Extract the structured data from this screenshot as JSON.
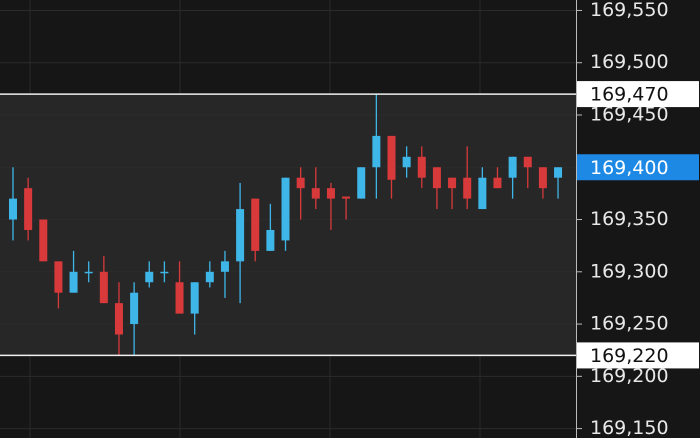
{
  "chart_data": {
    "type": "candlestick",
    "open": [
      169350,
      169380,
      169350,
      169310,
      169280,
      169300,
      169300,
      169270,
      169250,
      169290,
      169300,
      169290,
      169260,
      169290,
      169300,
      169310,
      169370,
      169320,
      169330,
      169390,
      169380,
      169380,
      169372,
      169370,
      169400,
      169430,
      169400,
      169410,
      169400,
      169390,
      169390,
      169360,
      169390,
      169390,
      169410,
      169400,
      169390
    ],
    "high": [
      169400,
      169390,
      169350,
      169310,
      169320,
      169310,
      169315,
      169290,
      169290,
      169310,
      169310,
      169310,
      169290,
      169310,
      169320,
      169385,
      169370,
      169365,
      169390,
      169400,
      169400,
      169385,
      169372,
      169400,
      169470,
      169430,
      169420,
      169420,
      169400,
      169390,
      169420,
      169400,
      169400,
      169410,
      169410,
      169400,
      169400
    ],
    "low": [
      169330,
      169330,
      169310,
      169265,
      169280,
      169290,
      169270,
      169220,
      169220,
      169285,
      169290,
      169260,
      169240,
      169285,
      169275,
      169270,
      169310,
      169320,
      169320,
      169350,
      169360,
      169340,
      169350,
      169370,
      169370,
      169370,
      169390,
      169380,
      169360,
      169360,
      169360,
      169360,
      169380,
      169370,
      169380,
      169370,
      169370
    ],
    "close": [
      169370,
      169340,
      169310,
      169280,
      169300,
      169300,
      169270,
      169240,
      169280,
      169300,
      169300,
      169260,
      169290,
      169300,
      169310,
      169360,
      169320,
      169340,
      169390,
      169380,
      169370,
      169370,
      169370,
      169400,
      169430,
      169388,
      169410,
      169390,
      169380,
      169380,
      169370,
      169390,
      169380,
      169410,
      169400,
      169380,
      169400
    ],
    "up_color": "#3fb6e8",
    "down_color": "#d8393b",
    "ylim": [
      169141,
      169560
    ],
    "yticks": [
      {
        "value": 169550,
        "label": "169,550"
      },
      {
        "value": 169500,
        "label": "169,500"
      },
      {
        "value": 169450,
        "label": "169,450"
      },
      {
        "value": 169400,
        "label": "169,400"
      },
      {
        "value": 169350,
        "label": "169,350"
      },
      {
        "value": 169300,
        "label": "169,300"
      },
      {
        "value": 169250,
        "label": "169,250"
      },
      {
        "value": 169200,
        "label": "169,200"
      },
      {
        "value": 169150,
        "label": "169,150"
      }
    ],
    "grid": true,
    "range_lines": [
      {
        "value": 169470,
        "label": "169,470"
      },
      {
        "value": 169220,
        "label": "169,220"
      }
    ],
    "last_price": {
      "value": 169400,
      "label": "169,400",
      "color": "#1e88e5"
    }
  }
}
